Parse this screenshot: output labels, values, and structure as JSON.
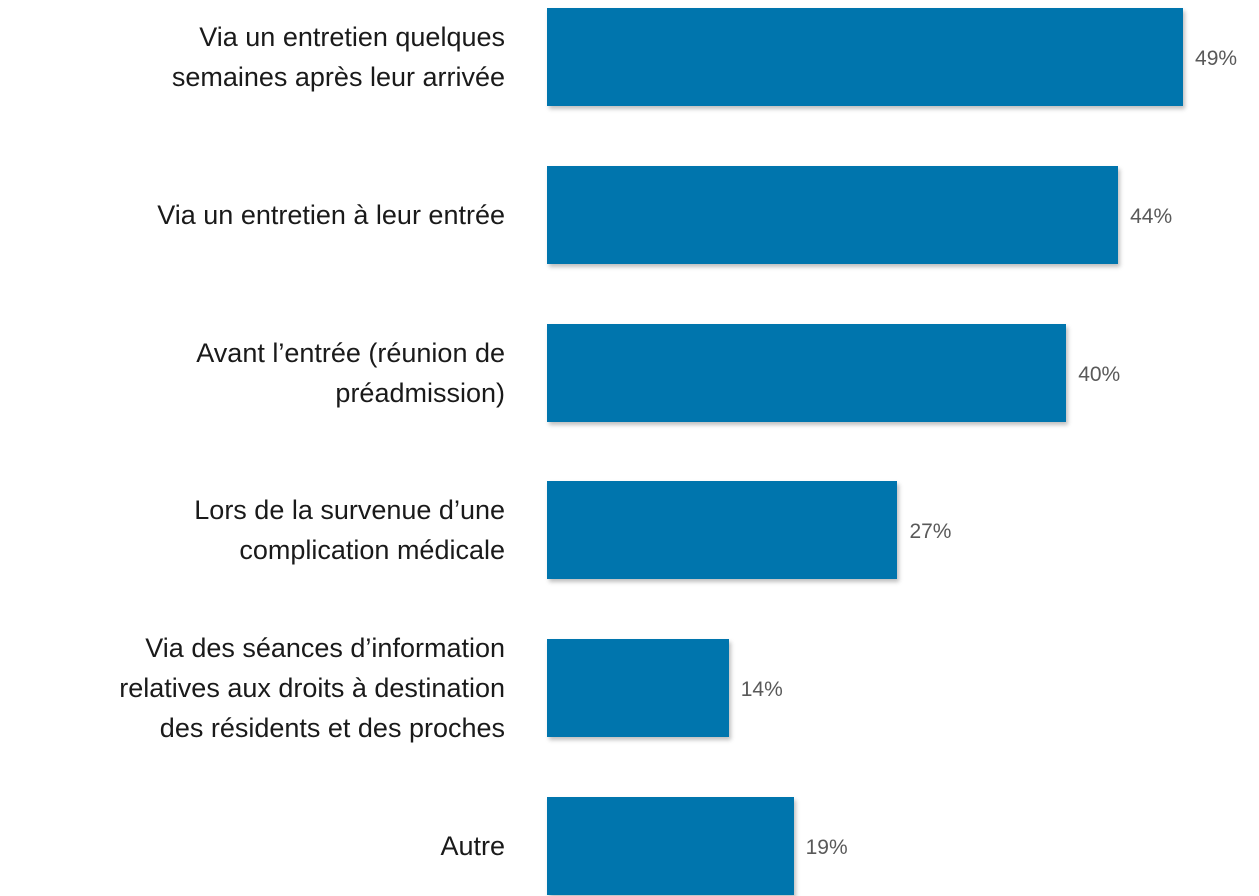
{
  "chart_data": {
    "type": "bar",
    "orientation": "horizontal",
    "categories": [
      "Via un entretien quelques\nsemaines après leur arrivée",
      "Via un entretien à leur entrée",
      "Avant l’entrée (réunion de\npréadmission)",
      "Lors de la survenue d’une\ncomplication médicale",
      "Via des séances d’information\nrelatives aux droits à destination\ndes résidents et des proches",
      "Autre"
    ],
    "values": [
      49,
      44,
      40,
      27,
      14,
      19
    ],
    "value_labels": [
      "49%",
      "44%",
      "40%",
      "27%",
      "14%",
      "19%"
    ],
    "color": "#0075ad"
  }
}
